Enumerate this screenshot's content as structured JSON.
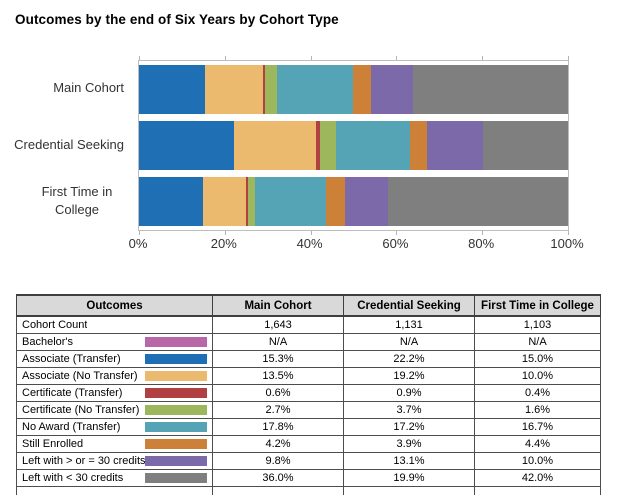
{
  "title": "Outcomes by the end of Six Years by Cohort Type",
  "chart_data": {
    "type": "bar",
    "orientation": "horizontal-stacked",
    "categories": [
      "Main Cohort",
      "Credential Seeking",
      "First Time in College"
    ],
    "series": [
      {
        "name": "Associate (Transfer)",
        "color": "#1f6fb4",
        "values": [
          15.3,
          22.2,
          15.0
        ]
      },
      {
        "name": "Associate (No Transfer)",
        "color": "#ecba6e",
        "values": [
          13.5,
          19.2,
          10.0
        ]
      },
      {
        "name": "Certificate (Transfer)",
        "color": "#b04041",
        "values": [
          0.6,
          0.9,
          0.4
        ]
      },
      {
        "name": "Certificate (No Transfer)",
        "color": "#9db85c",
        "values": [
          2.7,
          3.7,
          1.6
        ]
      },
      {
        "name": "No Award (Transfer)",
        "color": "#54a4b5",
        "values": [
          17.8,
          17.2,
          16.7
        ]
      },
      {
        "name": "Still Enrolled",
        "color": "#cd8038",
        "values": [
          4.2,
          3.9,
          4.4
        ]
      },
      {
        "name": "Left with > or = 30 credits",
        "color": "#7c69aa",
        "values": [
          9.8,
          13.1,
          10.0
        ]
      },
      {
        "name": "Left with < 30 credits",
        "color": "#7f7f7f",
        "values": [
          36.0,
          19.9,
          42.0
        ]
      }
    ],
    "title": "Outcomes by the end of Six Years by Cohort Type",
    "xlabel": "",
    "ylabel": "",
    "xlim": [
      0,
      100
    ],
    "x_ticks": [
      "0%",
      "20%",
      "40%",
      "60%",
      "80%",
      "100%"
    ],
    "grid": false,
    "legend_position": "none"
  },
  "table": {
    "headers": [
      "Outcomes",
      "Main Cohort",
      "Credential Seeking",
      "First Time in College"
    ],
    "rows": [
      {
        "label": "Cohort Count",
        "swatch": null,
        "values": [
          "1,643",
          "1,131",
          "1,103"
        ]
      },
      {
        "label": "Bachelor's",
        "swatch": "#b867a8",
        "values": [
          "N/A",
          "N/A",
          "N/A"
        ]
      },
      {
        "label": "Associate (Transfer)",
        "swatch": "#1f6fb4",
        "values": [
          "15.3%",
          "22.2%",
          "15.0%"
        ]
      },
      {
        "label": "Associate (No Transfer)",
        "swatch": "#ecba6e",
        "values": [
          "13.5%",
          "19.2%",
          "10.0%"
        ]
      },
      {
        "label": "Certificate (Transfer)",
        "swatch": "#b04041",
        "values": [
          "0.6%",
          "0.9%",
          "0.4%"
        ]
      },
      {
        "label": "Certificate (No Transfer)",
        "swatch": "#9db85c",
        "values": [
          "2.7%",
          "3.7%",
          "1.6%"
        ]
      },
      {
        "label": "No Award (Transfer)",
        "swatch": "#54a4b5",
        "values": [
          "17.8%",
          "17.2%",
          "16.7%"
        ]
      },
      {
        "label": "Still Enrolled",
        "swatch": "#cd8038",
        "values": [
          "4.2%",
          "3.9%",
          "4.4%"
        ]
      },
      {
        "label": "Left with > or = 30 credits",
        "swatch": "#7c69aa",
        "values": [
          "9.8%",
          "13.1%",
          "10.0%"
        ]
      },
      {
        "label": "Left with < 30 credits",
        "swatch": "#7f7f7f",
        "values": [
          "36.0%",
          "19.9%",
          "42.0%"
        ]
      }
    ]
  }
}
